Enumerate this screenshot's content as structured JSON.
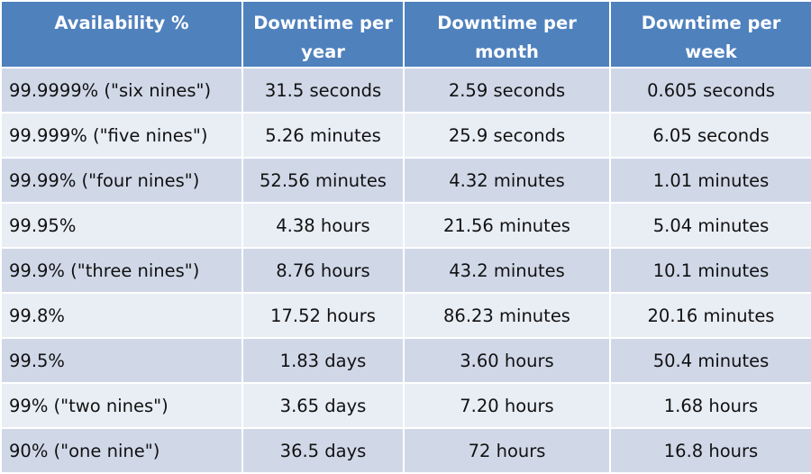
{
  "table": {
    "header": [
      "Availability %",
      "Downtime per year",
      "Downtime per month",
      "Downtime per week"
    ],
    "rows": [
      [
        "99.9999% (\"six nines\")",
        "31.5 seconds",
        "2.59 seconds",
        "0.605 seconds"
      ],
      [
        "99.999% (\"five nines\")",
        "5.26 minutes",
        "25.9 seconds",
        "6.05 seconds"
      ],
      [
        "99.99% (\"four nines\")",
        "52.56 minutes",
        "4.32 minutes",
        "1.01 minutes"
      ],
      [
        "99.95%",
        "4.38 hours",
        "21.56 minutes",
        "5.04 minutes"
      ],
      [
        "99.9% (\"three nines\")",
        "8.76 hours",
        "43.2 minutes",
        "10.1 minutes"
      ],
      [
        "99.8%",
        "17.52 hours",
        "86.23 minutes",
        "20.16 minutes"
      ],
      [
        "99.5%",
        "1.83 days",
        "3.60 hours",
        "50.4 minutes"
      ],
      [
        "99% (\"two nines\")",
        "3.65 days",
        "7.20 hours",
        "1.68 hours"
      ],
      [
        "90% (\"one nine\")",
        "36.5 days",
        "72 hours",
        "16.8 hours"
      ]
    ]
  }
}
